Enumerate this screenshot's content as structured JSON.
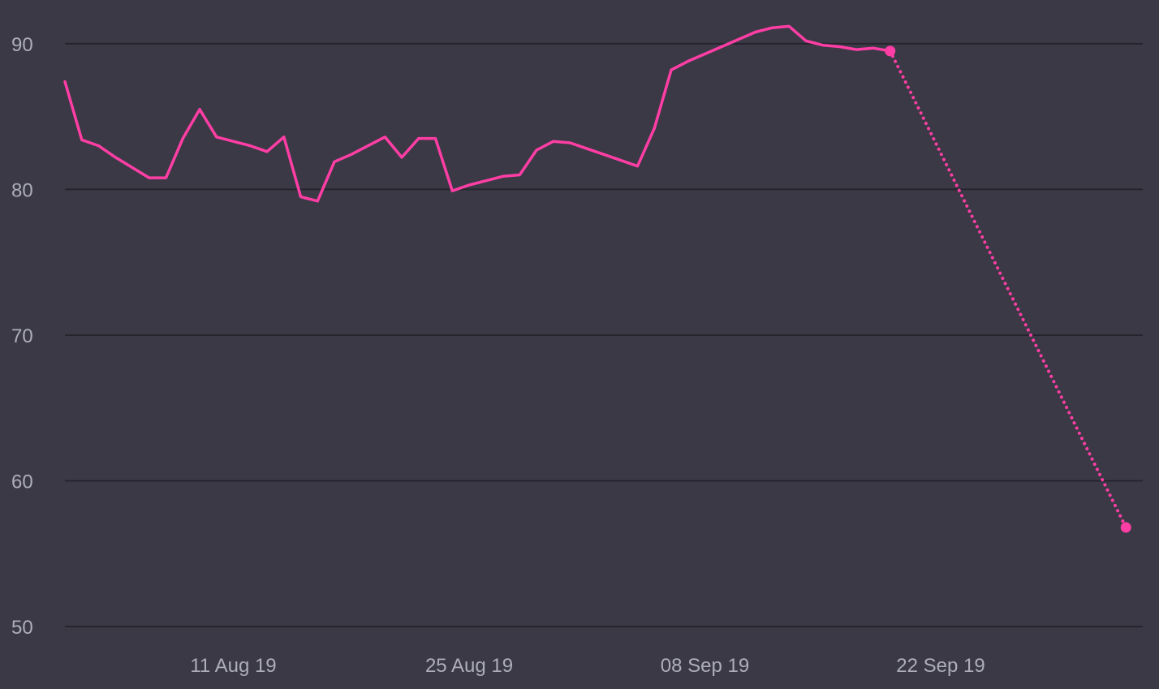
{
  "chart_data": {
    "type": "line",
    "title": "",
    "xlabel": "",
    "ylabel": "",
    "ylim": [
      50,
      92
    ],
    "y_ticks": [
      50,
      60,
      70,
      80,
      90
    ],
    "x_range": [
      "2019-08-01",
      "2019-10-04"
    ],
    "x_ticks": [
      {
        "date": "2019-08-11",
        "label": "11 Aug 19"
      },
      {
        "date": "2019-08-25",
        "label": "25 Aug 19"
      },
      {
        "date": "2019-09-08",
        "label": "08 Sep 19"
      },
      {
        "date": "2019-09-22",
        "label": "22 Sep 19"
      }
    ],
    "grid": true,
    "line_color": "#ff3ea5",
    "series": [
      {
        "style": "solid",
        "points": [
          [
            "2019-08-01",
            87.4
          ],
          [
            "2019-08-02",
            83.4
          ],
          [
            "2019-08-03",
            83.0
          ],
          [
            "2019-08-04",
            82.2
          ],
          [
            "2019-08-05",
            81.5
          ],
          [
            "2019-08-06",
            80.8
          ],
          [
            "2019-08-07",
            80.8
          ],
          [
            "2019-08-08",
            83.5
          ],
          [
            "2019-08-09",
            85.5
          ],
          [
            "2019-08-10",
            83.6
          ],
          [
            "2019-08-11",
            83.3
          ],
          [
            "2019-08-12",
            83.0
          ],
          [
            "2019-08-13",
            82.6
          ],
          [
            "2019-08-14",
            83.6
          ],
          [
            "2019-08-15",
            79.5
          ],
          [
            "2019-08-16",
            79.2
          ],
          [
            "2019-08-17",
            81.9
          ],
          [
            "2019-08-18",
            82.4
          ],
          [
            "2019-08-19",
            83.0
          ],
          [
            "2019-08-20",
            83.6
          ],
          [
            "2019-08-21",
            82.2
          ],
          [
            "2019-08-22",
            83.5
          ],
          [
            "2019-08-23",
            83.5
          ],
          [
            "2019-08-24",
            79.9
          ],
          [
            "2019-08-25",
            80.3
          ],
          [
            "2019-08-26",
            80.6
          ],
          [
            "2019-08-27",
            80.9
          ],
          [
            "2019-08-28",
            81.0
          ],
          [
            "2019-08-29",
            82.7
          ],
          [
            "2019-08-30",
            83.3
          ],
          [
            "2019-08-31",
            83.2
          ],
          [
            "2019-09-01",
            82.8
          ],
          [
            "2019-09-02",
            82.4
          ],
          [
            "2019-09-03",
            82.0
          ],
          [
            "2019-09-04",
            81.6
          ],
          [
            "2019-09-05",
            84.2
          ],
          [
            "2019-09-06",
            88.2
          ],
          [
            "2019-09-07",
            88.8
          ],
          [
            "2019-09-08",
            89.3
          ],
          [
            "2019-09-09",
            89.8
          ],
          [
            "2019-09-10",
            90.3
          ],
          [
            "2019-09-11",
            90.8
          ],
          [
            "2019-09-12",
            91.1
          ],
          [
            "2019-09-13",
            91.2
          ],
          [
            "2019-09-14",
            90.2
          ],
          [
            "2019-09-15",
            89.9
          ],
          [
            "2019-09-16",
            89.8
          ],
          [
            "2019-09-17",
            89.6
          ],
          [
            "2019-09-18",
            89.7
          ],
          [
            "2019-09-19",
            89.5
          ]
        ]
      },
      {
        "style": "dotted",
        "points": [
          [
            "2019-09-19",
            89.5
          ],
          [
            "2019-10-03",
            56.8
          ]
        ]
      }
    ],
    "markers": [
      [
        "2019-09-19",
        89.5
      ],
      [
        "2019-10-03",
        56.8
      ]
    ]
  }
}
